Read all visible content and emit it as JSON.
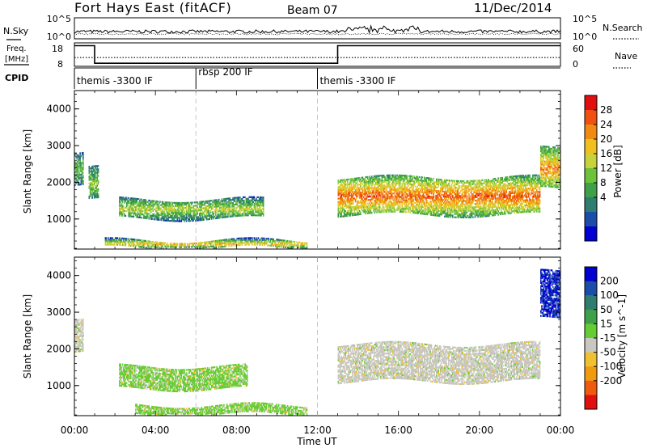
{
  "header": {
    "station": "Fort Hays East (fitACF)",
    "beam": "Beam 07",
    "date": "11/Dec/2014"
  },
  "noise_panel": {
    "left_label": "N.Sky",
    "right_label": "N.Search",
    "left_ticks": [
      "10^5",
      "10^0"
    ],
    "right_ticks": [
      "10^5",
      "10^0"
    ]
  },
  "freq_panel": {
    "left_label_1": "Freq.",
    "left_label_2": "[MHz]",
    "left_ticks": [
      "18",
      "8"
    ],
    "right_ticks": [
      "60",
      "0"
    ],
    "right_label": "Nave",
    "freq_profile_mhz": [
      [
        0,
        17.5
      ],
      [
        1,
        17.5
      ],
      [
        1,
        10
      ],
      [
        13,
        10
      ],
      [
        13,
        17.5
      ],
      [
        24,
        17.5
      ]
    ],
    "nave_level": 10
  },
  "cpid": {
    "label": "CPID",
    "segments": [
      {
        "start_hour": 0,
        "text": "themis -3300 IF"
      },
      {
        "start_hour": 6,
        "text": "rbsp 200 IF"
      },
      {
        "start_hour": 12,
        "text": "themis -3300 IF"
      }
    ]
  },
  "power_panel": {
    "ylabel": "Slant Range [km]",
    "yticks": [
      "1000",
      "2000",
      "3000",
      "4000"
    ],
    "colorbar_label": "Power [dB]",
    "colorbar_ticks": [
      "4",
      "8",
      "12",
      "16",
      "20",
      "24",
      "28"
    ],
    "colors": [
      "#0000d0",
      "#1a4ea8",
      "#2f7d6e",
      "#3fa04a",
      "#6cc23a",
      "#c8d23a",
      "#f0c020",
      "#f08a10",
      "#f05010",
      "#e01010"
    ]
  },
  "velocity_panel": {
    "ylabel": "Slant Range [km]",
    "yticks": [
      "1000",
      "2000",
      "3000",
      "4000"
    ],
    "colorbar_label": "Velocity [m s^-1]",
    "colorbar_ticks": [
      "200",
      "100",
      "50",
      "15",
      "-15",
      "-50",
      "-100",
      "-200"
    ],
    "colors": [
      "#0000d0",
      "#1a4ea8",
      "#2f7d6e",
      "#3fa04a",
      "#66cc33",
      "#c8c8c0",
      "#f0c030",
      "#f09a10",
      "#f05a10",
      "#e01010"
    ]
  },
  "time_axis": {
    "ticks": [
      "00:00",
      "04:00",
      "08:00",
      "12:00",
      "16:00",
      "20:00",
      "00:00"
    ],
    "label": "Time UT"
  },
  "chart_data": [
    {
      "type": "heatmap",
      "title": "Power",
      "xlabel": "Time UT",
      "ylabel": "Slant Range [km]",
      "xlim": [
        0,
        24
      ],
      "ylim": [
        180,
        4500
      ],
      "colorbar": {
        "label": "Power [dB]",
        "range": [
          0,
          30
        ]
      },
      "bands": [
        {
          "t_start": 0.0,
          "t_end": 0.4,
          "range_low": 1900,
          "range_high": 2800,
          "power_db": 10
        },
        {
          "t_start": 0.7,
          "t_end": 1.2,
          "range_low": 1500,
          "range_high": 2400,
          "power_db": 12
        },
        {
          "t_start": 2.2,
          "t_end": 9.3,
          "range_low": 1000,
          "range_high": 1500,
          "power_db": 14
        },
        {
          "t_start": 1.5,
          "t_end": 11.5,
          "range_low": 200,
          "range_high": 400,
          "power_db": 18
        },
        {
          "t_start": 13.0,
          "t_end": 23.0,
          "range_low": 1100,
          "range_high": 2100,
          "power_db": 22
        },
        {
          "t_start": 23.0,
          "t_end": 24.0,
          "range_low": 1800,
          "range_high": 2900,
          "power_db": 20
        }
      ]
    },
    {
      "type": "heatmap",
      "title": "Velocity",
      "xlabel": "Time UT",
      "ylabel": "Slant Range [km]",
      "xlim": [
        0,
        24
      ],
      "ylim": [
        180,
        4500
      ],
      "colorbar": {
        "label": "Velocity [m s^-1]",
        "range": [
          -250,
          250
        ]
      },
      "bands": [
        {
          "t_start": 0.0,
          "t_end": 0.4,
          "range_low": 1900,
          "range_high": 2800,
          "velocity": 0
        },
        {
          "t_start": 2.2,
          "t_end": 8.5,
          "range_low": 900,
          "range_high": 1500,
          "velocity": 30
        },
        {
          "t_start": 3.0,
          "t_end": 11.5,
          "range_low": 200,
          "range_high": 450,
          "velocity": 40
        },
        {
          "t_start": 13.0,
          "t_end": 23.0,
          "range_low": 1100,
          "range_high": 2100,
          "velocity": 0
        },
        {
          "t_start": 23.0,
          "t_end": 24.0,
          "range_low": 2800,
          "range_high": 4100,
          "velocity": 200
        }
      ]
    }
  ]
}
